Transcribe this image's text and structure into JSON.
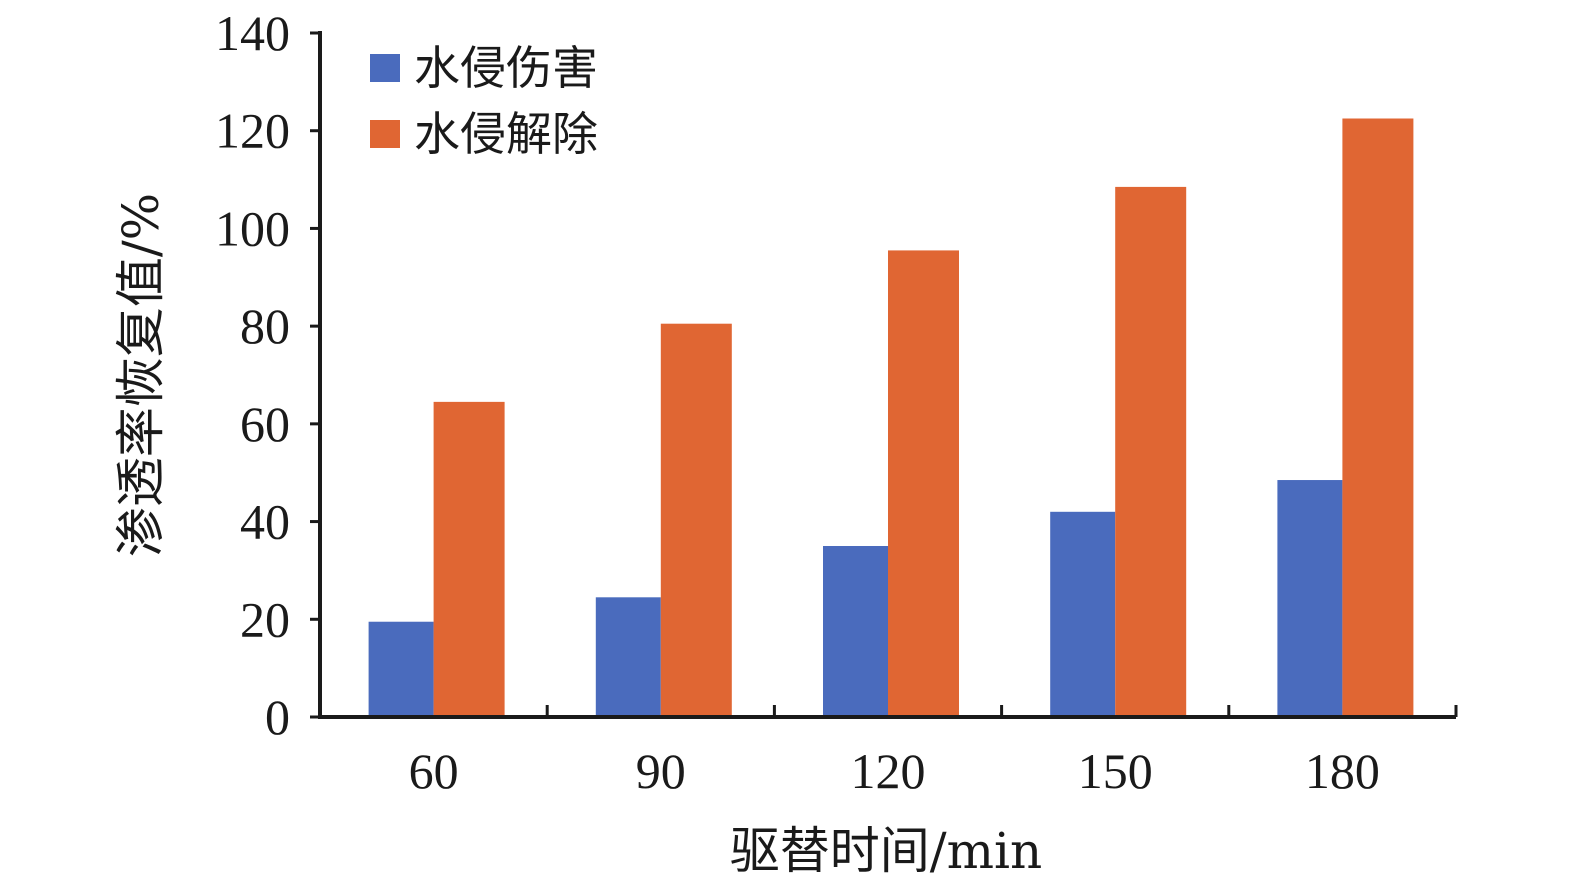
{
  "chart_data": {
    "type": "bar",
    "categories": [
      "60",
      "90",
      "120",
      "150",
      "180"
    ],
    "series": [
      {
        "name": "水侵伤害",
        "values": [
          19.5,
          24.5,
          35.0,
          42.0,
          48.5
        ],
        "color": "#4a6bbd"
      },
      {
        "name": "水侵解除",
        "values": [
          64.5,
          80.5,
          95.5,
          108.5,
          122.5
        ],
        "color": "#e06633"
      }
    ],
    "xlabel": "驱替时间/min",
    "ylabel": "渗透率恢复值/%",
    "ylim": [
      0,
      140
    ],
    "yticks": [
      "0",
      "20",
      "40",
      "60",
      "80",
      "100",
      "120",
      "140"
    ],
    "grid": false,
    "legend_position": "top-left"
  }
}
